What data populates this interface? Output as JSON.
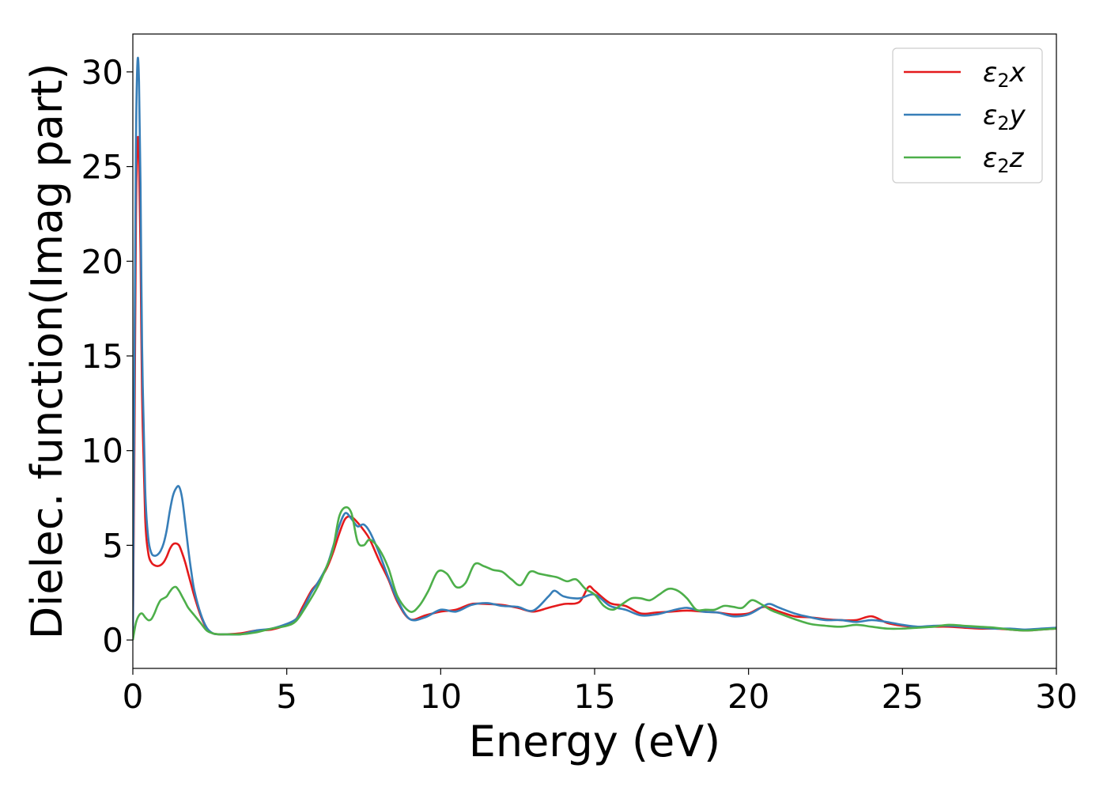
{
  "chart_data": {
    "type": "line",
    "title": "",
    "xlabel": "Energy (eV)",
    "ylabel": "Dielec. function(Imag part)",
    "xlim": [
      0,
      30
    ],
    "ylim": [
      -1.5,
      32
    ],
    "xticks": [
      0,
      5,
      10,
      15,
      20,
      25,
      30
    ],
    "yticks": [
      0,
      5,
      10,
      15,
      20,
      25,
      30
    ],
    "grid": false,
    "legend_position": "top-right",
    "series": [
      {
        "name": "ε2x",
        "legend_base": "ε",
        "legend_sub": "2",
        "legend_suffix": "x",
        "color": "#e41a1c",
        "x": [
          0,
          0.05,
          0.1,
          0.15,
          0.2,
          0.25,
          0.3,
          0.4,
          0.5,
          0.6,
          0.7,
          0.8,
          0.9,
          1.0,
          1.1,
          1.2,
          1.3,
          1.4,
          1.5,
          1.6,
          1.7,
          1.8,
          1.9,
          2.0,
          2.2,
          2.4,
          2.6,
          2.8,
          3.0,
          3.5,
          4.0,
          4.5,
          5.0,
          5.3,
          5.5,
          5.8,
          6.0,
          6.3,
          6.5,
          6.7,
          6.9,
          7.1,
          7.3,
          7.5,
          7.7,
          8.0,
          8.3,
          8.6,
          9.0,
          9.5,
          10.0,
          10.5,
          11.0,
          11.5,
          12.0,
          12.5,
          13.0,
          13.5,
          14.0,
          14.5,
          14.8,
          15.0,
          15.5,
          16.0,
          16.5,
          17.0,
          17.5,
          18.0,
          18.5,
          19.0,
          19.5,
          20.0,
          20.5,
          21.0,
          21.5,
          22.0,
          22.5,
          23.0,
          23.5,
          24.0,
          24.5,
          25.0,
          25.5,
          26.0,
          26.5,
          27.0,
          27.5,
          28.0,
          28.5,
          29.0,
          29.5,
          30.0
        ],
        "values": [
          0.0,
          10.0,
          22.0,
          26.3,
          25.5,
          20.5,
          13.0,
          6.5,
          4.6,
          4.1,
          3.95,
          3.9,
          3.95,
          4.1,
          4.4,
          4.8,
          5.05,
          5.1,
          5.0,
          4.6,
          4.1,
          3.5,
          2.9,
          2.3,
          1.3,
          0.6,
          0.35,
          0.3,
          0.3,
          0.35,
          0.5,
          0.55,
          0.8,
          1.1,
          1.7,
          2.6,
          3.0,
          3.8,
          4.6,
          5.6,
          6.4,
          6.5,
          6.2,
          5.8,
          5.3,
          4.2,
          3.2,
          2.0,
          1.1,
          1.3,
          1.5,
          1.6,
          1.9,
          1.9,
          1.85,
          1.7,
          1.5,
          1.7,
          1.9,
          2.0,
          2.8,
          2.6,
          1.95,
          1.8,
          1.4,
          1.45,
          1.5,
          1.55,
          1.5,
          1.45,
          1.35,
          1.4,
          1.75,
          1.5,
          1.25,
          1.2,
          1.1,
          1.05,
          1.05,
          1.25,
          0.9,
          0.75,
          0.7,
          0.7,
          0.7,
          0.65,
          0.6,
          0.6,
          0.55,
          0.5,
          0.55,
          0.6
        ]
      },
      {
        "name": "ε2y",
        "legend_base": "ε",
        "legend_sub": "2",
        "legend_suffix": "y",
        "color": "#377eb8",
        "x": [
          0,
          0.05,
          0.1,
          0.15,
          0.2,
          0.25,
          0.3,
          0.4,
          0.5,
          0.6,
          0.7,
          0.8,
          0.9,
          1.0,
          1.1,
          1.2,
          1.3,
          1.4,
          1.5,
          1.6,
          1.7,
          1.8,
          1.9,
          2.0,
          2.2,
          2.4,
          2.6,
          2.8,
          3.0,
          3.5,
          4.0,
          4.5,
          5.0,
          5.3,
          5.5,
          5.8,
          6.0,
          6.3,
          6.5,
          6.7,
          6.9,
          7.1,
          7.3,
          7.5,
          7.7,
          8.0,
          8.3,
          8.6,
          9.0,
          9.5,
          10.0,
          10.5,
          11.0,
          11.5,
          12.0,
          12.5,
          13.0,
          13.5,
          13.7,
          14.0,
          14.5,
          15.0,
          15.5,
          16.0,
          16.5,
          17.0,
          17.5,
          18.0,
          18.5,
          19.0,
          19.5,
          20.0,
          20.5,
          20.7,
          21.0,
          21.5,
          22.0,
          22.5,
          23.0,
          23.5,
          24.0,
          24.5,
          25.0,
          25.5,
          26.0,
          26.5,
          27.0,
          27.5,
          28.0,
          28.5,
          29.0,
          29.5,
          30.0
        ],
        "values": [
          0.0,
          14.0,
          26.0,
          30.5,
          29.5,
          24.0,
          15.5,
          8.0,
          5.4,
          4.6,
          4.45,
          4.5,
          4.7,
          5.1,
          5.8,
          6.8,
          7.6,
          8.0,
          8.1,
          7.5,
          6.2,
          4.8,
          3.6,
          2.6,
          1.4,
          0.65,
          0.35,
          0.3,
          0.3,
          0.3,
          0.5,
          0.6,
          0.85,
          1.1,
          1.55,
          2.5,
          3.0,
          3.9,
          4.9,
          6.0,
          6.7,
          6.4,
          6.0,
          6.1,
          5.7,
          4.6,
          3.3,
          2.1,
          1.1,
          1.2,
          1.6,
          1.5,
          1.85,
          1.95,
          1.8,
          1.75,
          1.55,
          2.3,
          2.6,
          2.3,
          2.2,
          2.4,
          1.8,
          1.6,
          1.3,
          1.35,
          1.55,
          1.7,
          1.5,
          1.45,
          1.25,
          1.35,
          1.8,
          1.9,
          1.7,
          1.4,
          1.2,
          1.05,
          1.05,
          0.95,
          1.05,
          0.95,
          0.8,
          0.7,
          0.75,
          0.75,
          0.7,
          0.65,
          0.6,
          0.6,
          0.55,
          0.6,
          0.65
        ]
      },
      {
        "name": "ε2z",
        "legend_base": "ε",
        "legend_sub": "2",
        "legend_suffix": "z",
        "color": "#4daf4a",
        "x": [
          0,
          0.1,
          0.2,
          0.3,
          0.4,
          0.5,
          0.6,
          0.7,
          0.8,
          0.9,
          1.0,
          1.1,
          1.2,
          1.3,
          1.4,
          1.5,
          1.6,
          1.7,
          1.8,
          2.0,
          2.2,
          2.4,
          2.6,
          2.8,
          3.0,
          3.5,
          4.0,
          4.5,
          5.0,
          5.3,
          5.6,
          6.0,
          6.3,
          6.5,
          6.7,
          6.9,
          7.1,
          7.3,
          7.5,
          7.7,
          8.0,
          8.3,
          8.6,
          9.0,
          9.3,
          9.6,
          9.9,
          10.2,
          10.5,
          10.8,
          11.1,
          11.4,
          11.7,
          12.0,
          12.3,
          12.6,
          12.9,
          13.2,
          13.5,
          13.8,
          14.1,
          14.4,
          14.7,
          15.0,
          15.3,
          15.6,
          15.9,
          16.2,
          16.5,
          16.8,
          17.1,
          17.4,
          17.7,
          18.0,
          18.3,
          18.6,
          18.9,
          19.2,
          19.5,
          19.8,
          20.1,
          20.4,
          20.7,
          21.0,
          21.5,
          22.0,
          22.5,
          23.0,
          23.5,
          24.0,
          24.5,
          25.0,
          25.5,
          26.0,
          26.5,
          27.0,
          27.5,
          28.0,
          28.5,
          29.0,
          29.5,
          30.0
        ],
        "values": [
          0.0,
          0.9,
          1.3,
          1.4,
          1.2,
          1.05,
          1.1,
          1.4,
          1.8,
          2.1,
          2.2,
          2.3,
          2.55,
          2.75,
          2.8,
          2.6,
          2.3,
          2.0,
          1.7,
          1.3,
          0.9,
          0.5,
          0.35,
          0.3,
          0.3,
          0.3,
          0.4,
          0.6,
          0.75,
          1.0,
          1.7,
          2.8,
          3.9,
          4.8,
          6.5,
          7.0,
          6.7,
          5.2,
          5.0,
          5.3,
          4.8,
          3.8,
          2.3,
          1.5,
          1.8,
          2.6,
          3.6,
          3.5,
          2.8,
          3.0,
          4.0,
          3.9,
          3.7,
          3.6,
          3.2,
          2.9,
          3.6,
          3.5,
          3.4,
          3.3,
          3.1,
          3.2,
          2.7,
          2.4,
          1.8,
          1.6,
          1.9,
          2.2,
          2.2,
          2.1,
          2.4,
          2.7,
          2.6,
          2.2,
          1.6,
          1.6,
          1.6,
          1.8,
          1.75,
          1.7,
          2.1,
          1.9,
          1.6,
          1.4,
          1.1,
          0.85,
          0.75,
          0.7,
          0.8,
          0.7,
          0.6,
          0.6,
          0.65,
          0.7,
          0.8,
          0.75,
          0.7,
          0.65,
          0.55,
          0.5,
          0.55,
          0.6
        ]
      }
    ]
  }
}
